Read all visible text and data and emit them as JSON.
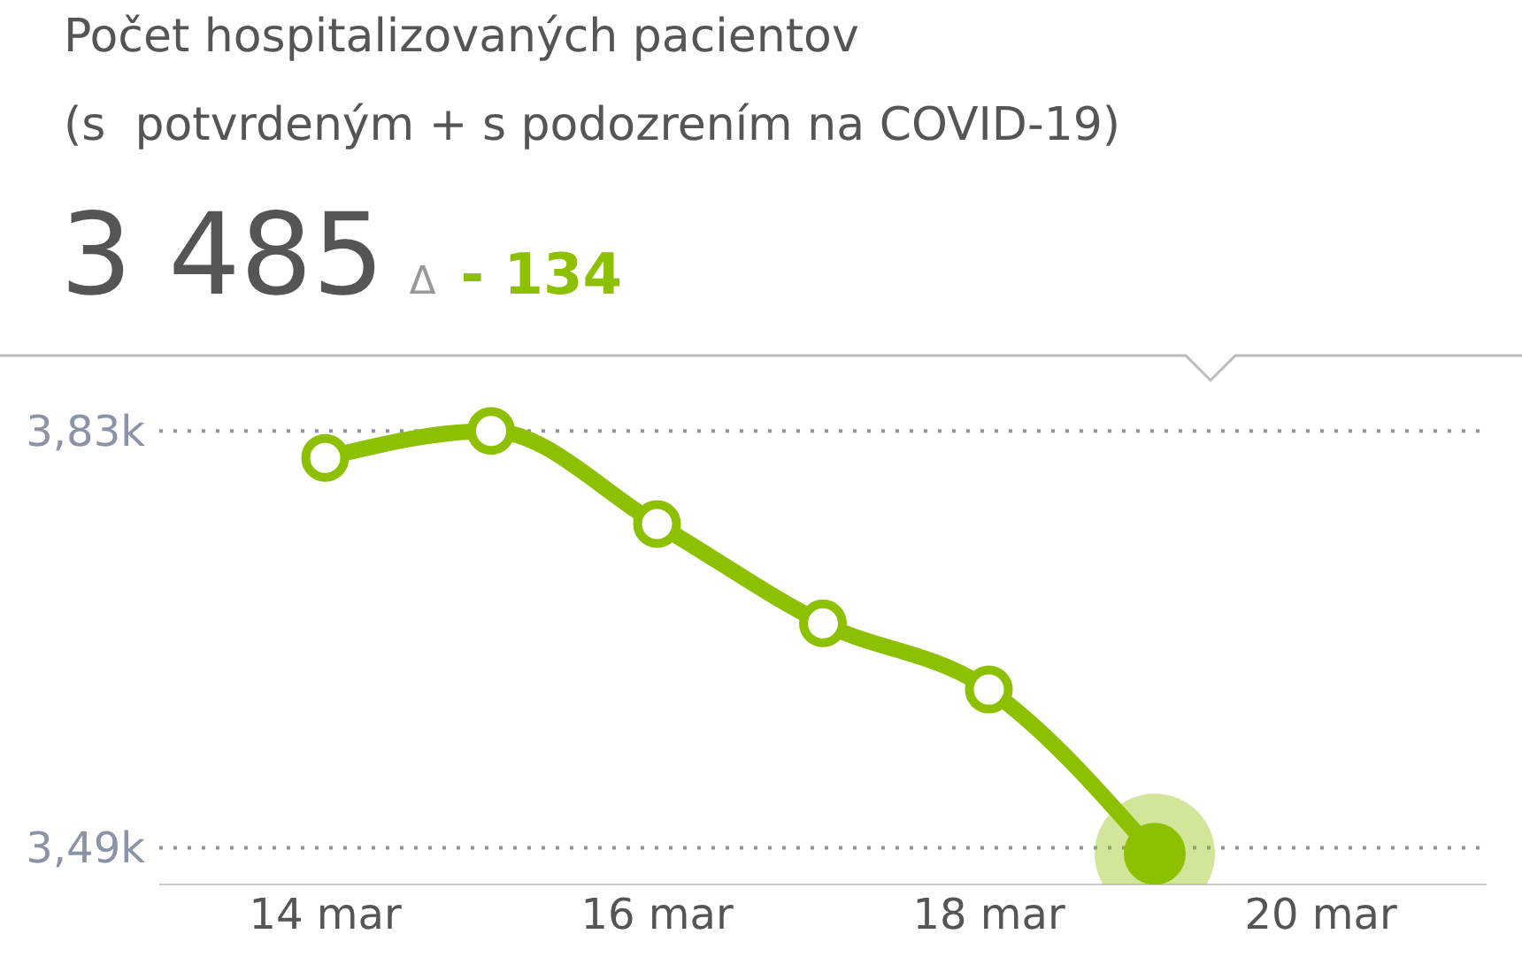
{
  "chart_data": {
    "type": "line",
    "title": "Počet hospitalizovaných pacientov",
    "subtitle": "(s  potvrdeným + s podozrením na COVID-19)",
    "annotations": [
      "3 485",
      "Δ",
      "- 134"
    ],
    "x": [
      "--03-14",
      "--03-15",
      "--03-16",
      "--03-17",
      "--03-18",
      "--03-19"
    ],
    "series": [
      {
        "color": "#8dc000",
        "values": [
          3808,
          3830,
          3754,
          3673,
          3619,
          3485
        ]
      }
    ],
    "xlim": [
      "--03-13",
      "--03-21"
    ],
    "xticks": [
      {
        "value": "--03-14",
        "label": "14 mar"
      },
      {
        "value": "--03-16",
        "label": "16 mar"
      },
      {
        "value": "--03-18",
        "label": "18 mar"
      },
      {
        "value": "--03-20",
        "label": "20 mar"
      }
    ],
    "ylim": [
      3460,
      3890
    ],
    "yticks": [
      {
        "value": 3830,
        "label": "3,83k"
      },
      {
        "value": 3490,
        "label": "3,49k"
      }
    ],
    "grid": "y",
    "marker": "circle",
    "line_style": "solid"
  }
}
